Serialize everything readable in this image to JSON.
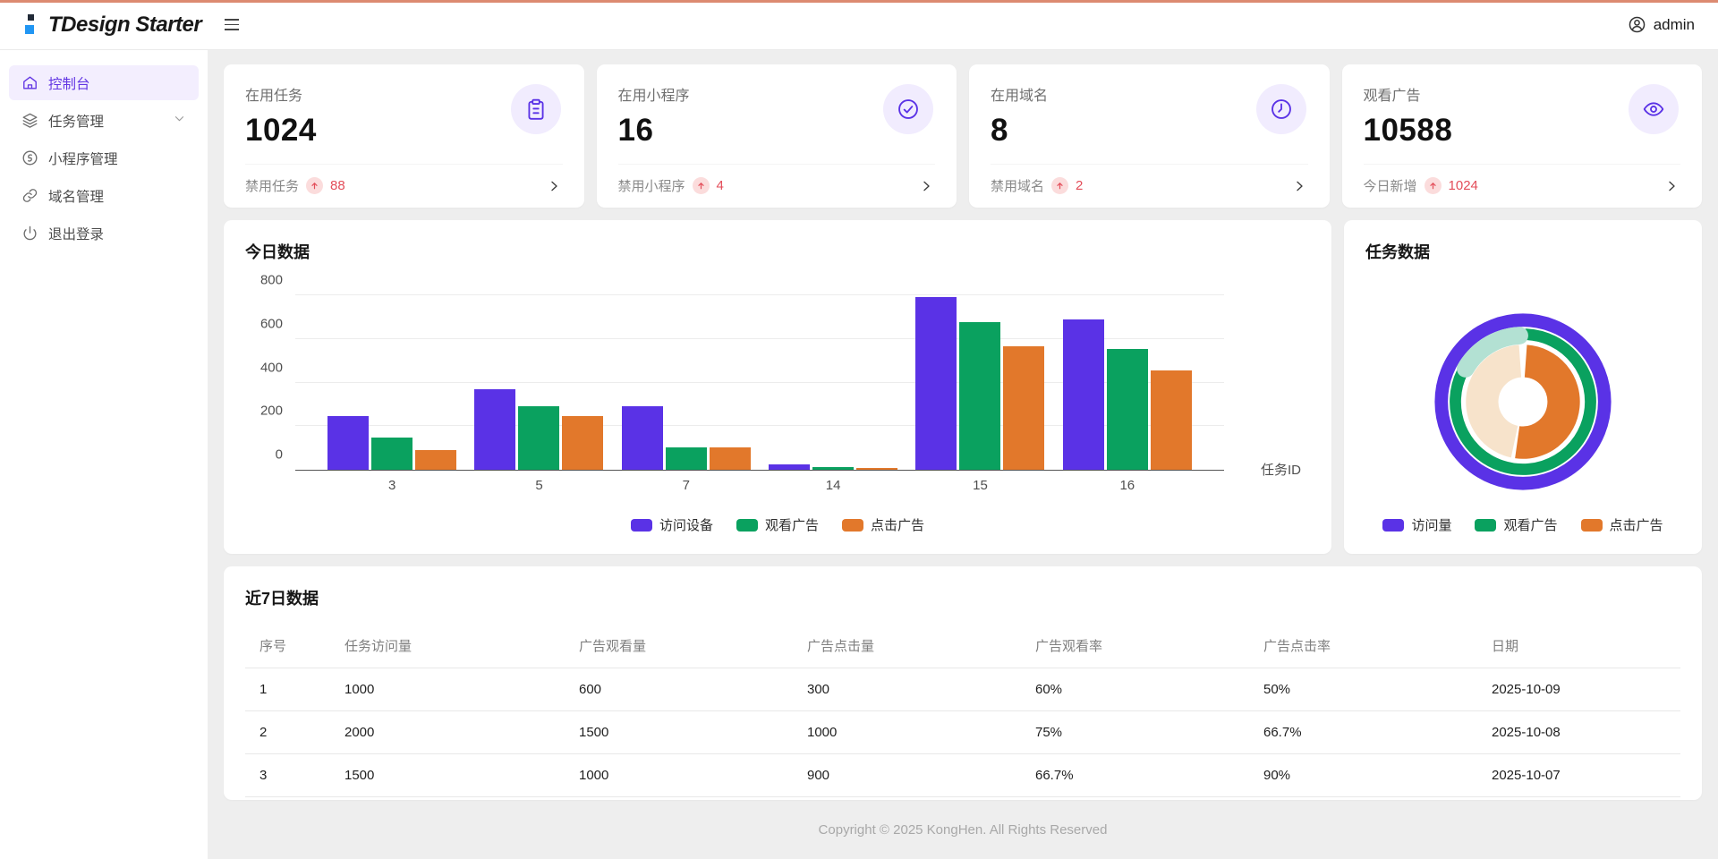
{
  "header": {
    "logo_text": "TDesign Starter",
    "user_name": "admin"
  },
  "sidebar": {
    "items": [
      {
        "label": "控制台",
        "icon": "home-icon",
        "active": true
      },
      {
        "label": "任务管理",
        "icon": "layers-icon",
        "expandable": true
      },
      {
        "label": "小程序管理",
        "icon": "miniprogram-icon"
      },
      {
        "label": "域名管理",
        "icon": "link-icon"
      },
      {
        "label": "退出登录",
        "icon": "power-icon"
      }
    ]
  },
  "stat_cards": [
    {
      "title": "在用任务",
      "value": "1024",
      "icon": "clipboard-icon",
      "footer_label": "禁用任务",
      "trend": "up",
      "footer_value": "88"
    },
    {
      "title": "在用小程序",
      "value": "16",
      "icon": "check-circle-icon",
      "footer_label": "禁用小程序",
      "trend": "up",
      "footer_value": "4"
    },
    {
      "title": "在用域名",
      "value": "8",
      "icon": "clock-icon",
      "footer_label": "禁用域名",
      "trend": "up",
      "footer_value": "2"
    },
    {
      "title": "观看广告",
      "value": "10588",
      "icon": "eye-icon",
      "footer_label": "今日新增",
      "trend": "up",
      "footer_value": "1024"
    }
  ],
  "chart_data": [
    {
      "type": "bar",
      "title": "今日数据",
      "categories": [
        "3",
        "5",
        "7",
        "14",
        "15",
        "16"
      ],
      "series": [
        {
          "name": "访问设备",
          "color": "#5a32e6",
          "values": [
            245,
            368,
            290,
            25,
            789,
            687
          ]
        },
        {
          "name": "观看广告",
          "color": "#0aa15f",
          "values": [
            148,
            290,
            103,
            14,
            675,
            551
          ]
        },
        {
          "name": "点击广告",
          "color": "#e2782b",
          "values": [
            90,
            245,
            103,
            8,
            563,
            452
          ]
        }
      ],
      "xlabel": "任务ID",
      "ylabel": "",
      "ylim": [
        0,
        800
      ],
      "yticks": [
        0,
        200,
        400,
        600,
        800
      ],
      "grid": true,
      "legend_position": "bottom"
    },
    {
      "type": "pie",
      "title": "任务数据",
      "legend": [
        {
          "name": "访问量",
          "color": "#5a32e6"
        },
        {
          "name": "观看广告",
          "color": "#0aa15f"
        },
        {
          "name": "点击广告",
          "color": "#e2782b"
        }
      ],
      "legend_position": "bottom",
      "rings": [
        {
          "name": "访问量",
          "segments": [
            {
              "from": 0,
              "to": 360,
              "color": "#5a32e6"
            }
          ]
        },
        {
          "name": "观看广告",
          "segments": [
            {
              "from": 3,
              "to": 296,
              "color": "#0aa15f"
            },
            {
              "from": 300,
              "to": 357,
              "color": "#b3e1d3",
              "emphasis": true
            }
          ]
        },
        {
          "name": "点击广告",
          "segments": [
            {
              "from": 4,
              "to": 188,
              "color": "#e2782b"
            },
            {
              "from": 192,
              "to": 356,
              "color": "#f7e3cb"
            }
          ]
        }
      ]
    }
  ],
  "table": {
    "title": "近7日数据",
    "columns": [
      "序号",
      "任务访问量",
      "广告观看量",
      "广告点击量",
      "广告观看率",
      "广告点击率",
      "日期"
    ],
    "rows": [
      [
        "1",
        "1000",
        "600",
        "300",
        "60%",
        "50%",
        "2025-10-09"
      ],
      [
        "2",
        "2000",
        "1500",
        "1000",
        "75%",
        "66.7%",
        "2025-10-08"
      ],
      [
        "3",
        "1500",
        "1000",
        "900",
        "66.7%",
        "90%",
        "2025-10-07"
      ]
    ]
  },
  "footer": {
    "copyright": "Copyright © 2025 KongHen. All Rights Reserved"
  },
  "colors": {
    "brand_purple": "#5a32e6",
    "active_menu_text": "#6236e3",
    "active_menu_bg": "#f3eefe",
    "green": "#0aa15f",
    "orange": "#e2782b",
    "mint": "#b3e1d3",
    "peach": "#f7e3cb",
    "trend_red": "#e34d59",
    "topbar_line": "#dc8a71",
    "page_bg": "#eeeeee"
  }
}
